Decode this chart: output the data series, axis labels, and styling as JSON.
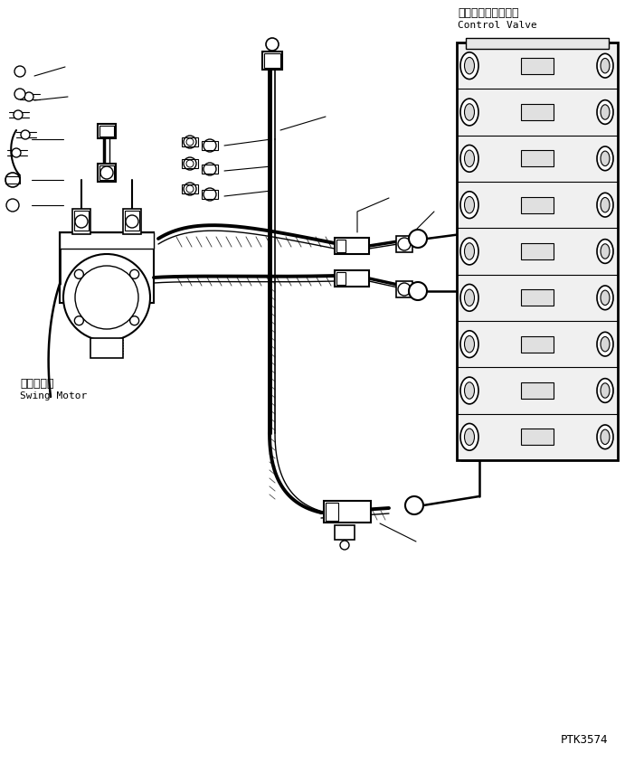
{
  "bg_color": "#ffffff",
  "line_color": "#000000",
  "label_swing_motor_jp": "旋回モータ",
  "label_swing_motor_en": "Swing Motor",
  "label_control_valve_jp": "コントロールバルブ",
  "label_control_valve_en": "Control Valve",
  "label_ptk": "PTK3574",
  "figsize": [
    6.91,
    8.45
  ],
  "dpi": 100
}
